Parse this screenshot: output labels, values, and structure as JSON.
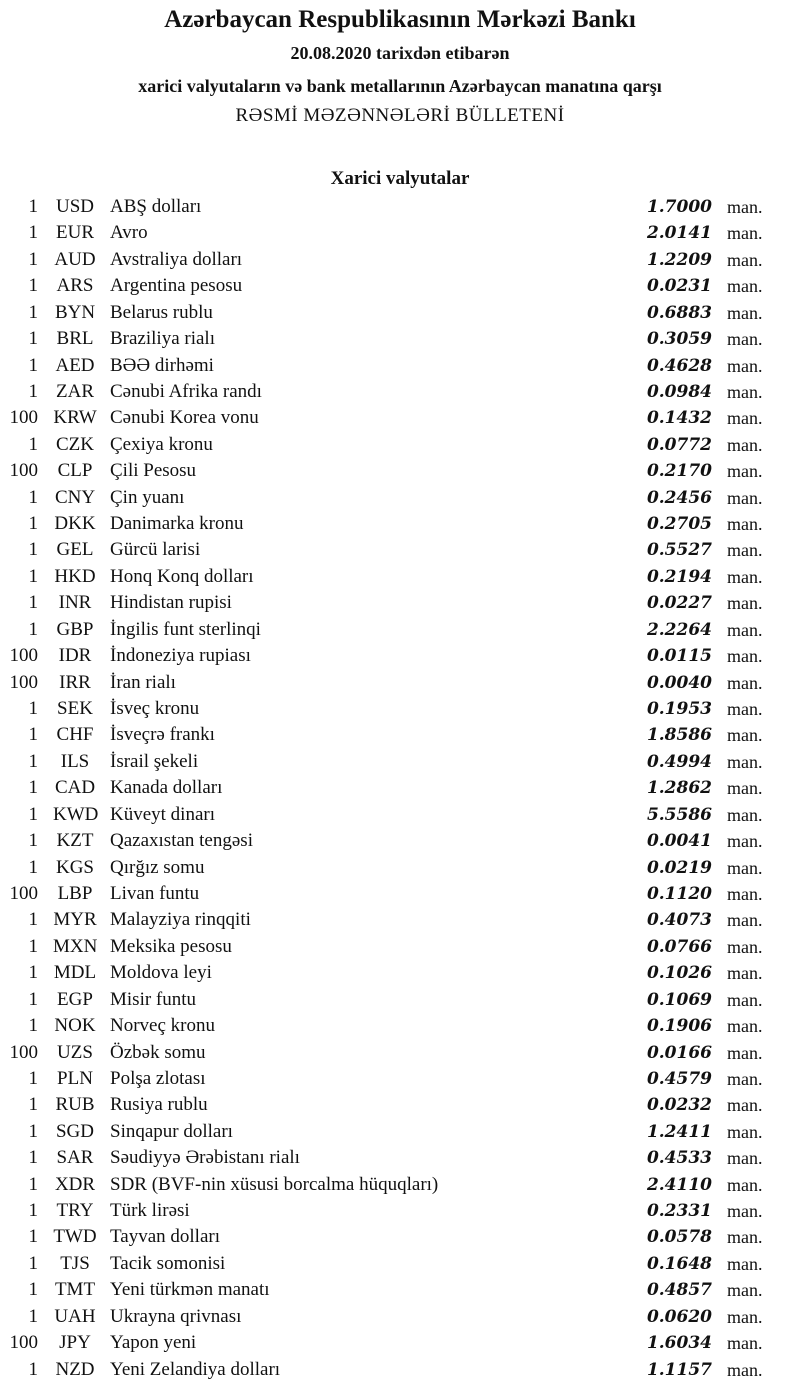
{
  "header": {
    "title": "Azərbaycan Respublikasının Mərkəzi Bankı",
    "date_line": "20.08.2020  tarixdən etibarən",
    "subtitle": "xarici valyutaların və bank metallarının Azərbaycan manatına qarşı",
    "bulletin": "RƏSMİ MƏZƏNNƏLƏRİ BÜLLETENİ"
  },
  "section": {
    "title": "Xarici valyutalar",
    "unit": "man.",
    "rows": [
      {
        "qty": "1",
        "code": "USD",
        "name": "ABŞ dolları",
        "rate": "1.7000"
      },
      {
        "qty": "1",
        "code": "EUR",
        "name": "Avro",
        "rate": "2.0141"
      },
      {
        "qty": "1",
        "code": "AUD",
        "name": "Avstraliya dolları",
        "rate": "1.2209"
      },
      {
        "qty": "1",
        "code": "ARS",
        "name": "Argentina pesosu",
        "rate": "0.0231"
      },
      {
        "qty": "1",
        "code": "BYN",
        "name": "Belarus rublu",
        "rate": "0.6883"
      },
      {
        "qty": "1",
        "code": "BRL",
        "name": "Braziliya rialı",
        "rate": "0.3059"
      },
      {
        "qty": "1",
        "code": "AED",
        "name": "BƏƏ dirhəmi",
        "rate": "0.4628"
      },
      {
        "qty": "1",
        "code": "ZAR",
        "name": "Cənubi Afrika randı",
        "rate": "0.0984"
      },
      {
        "qty": "100",
        "code": "KRW",
        "name": "Cənubi Korea vonu",
        "rate": "0.1432"
      },
      {
        "qty": "1",
        "code": "CZK",
        "name": "Çexiya kronu",
        "rate": "0.0772"
      },
      {
        "qty": "100",
        "code": "CLP",
        "name": "Çili Pesosu",
        "rate": "0.2170"
      },
      {
        "qty": "1",
        "code": "CNY",
        "name": "Çin yuanı",
        "rate": "0.2456"
      },
      {
        "qty": "1",
        "code": "DKK",
        "name": "Danimarka kronu",
        "rate": "0.2705"
      },
      {
        "qty": "1",
        "code": "GEL",
        "name": "Gürcü larisi",
        "rate": "0.5527"
      },
      {
        "qty": "1",
        "code": "HKD",
        "name": "Honq Konq dolları",
        "rate": "0.2194"
      },
      {
        "qty": "1",
        "code": "INR",
        "name": "Hindistan rupisi",
        "rate": "0.0227"
      },
      {
        "qty": "1",
        "code": "GBP",
        "name": "İngilis funt sterlinqi",
        "rate": "2.2264"
      },
      {
        "qty": "100",
        "code": "IDR",
        "name": "İndoneziya rupiası",
        "rate": "0.0115"
      },
      {
        "qty": "100",
        "code": "IRR",
        "name": "İran rialı",
        "rate": "0.0040"
      },
      {
        "qty": "1",
        "code": "SEK",
        "name": "İsveç kronu",
        "rate": "0.1953"
      },
      {
        "qty": "1",
        "code": "CHF",
        "name": "İsveçrə frankı",
        "rate": "1.8586"
      },
      {
        "qty": "1",
        "code": "ILS",
        "name": "İsrail şekeli",
        "rate": "0.4994"
      },
      {
        "qty": "1",
        "code": "CAD",
        "name": "Kanada dolları",
        "rate": "1.2862"
      },
      {
        "qty": "1",
        "code": "KWD",
        "name": "Küveyt dinarı",
        "rate": "5.5586"
      },
      {
        "qty": "1",
        "code": "KZT",
        "name": "Qazaxıstan tengəsi",
        "rate": "0.0041"
      },
      {
        "qty": "1",
        "code": "KGS",
        "name": "Qırğız somu",
        "rate": "0.0219"
      },
      {
        "qty": "100",
        "code": "LBP",
        "name": "Livan funtu",
        "rate": "0.1120"
      },
      {
        "qty": "1",
        "code": "MYR",
        "name": "Malayziya rinqqiti",
        "rate": "0.4073"
      },
      {
        "qty": "1",
        "code": "MXN",
        "name": "Meksika pesosu",
        "rate": "0.0766"
      },
      {
        "qty": "1",
        "code": "MDL",
        "name": "Moldova leyi",
        "rate": "0.1026"
      },
      {
        "qty": "1",
        "code": "EGP",
        "name": "Misir funtu",
        "rate": "0.1069"
      },
      {
        "qty": "1",
        "code": "NOK",
        "name": "Norveç kronu",
        "rate": "0.1906"
      },
      {
        "qty": "100",
        "code": "UZS",
        "name": "Özbək somu",
        "rate": "0.0166"
      },
      {
        "qty": "1",
        "code": "PLN",
        "name": "Polşa zlotası",
        "rate": "0.4579"
      },
      {
        "qty": "1",
        "code": "RUB",
        "name": "Rusiya rublu",
        "rate": "0.0232"
      },
      {
        "qty": "1",
        "code": "SGD",
        "name": "Sinqapur dolları",
        "rate": "1.2411"
      },
      {
        "qty": "1",
        "code": "SAR",
        "name": "Səudiyyə Ərəbistanı rialı",
        "rate": "0.4533"
      },
      {
        "qty": "1",
        "code": "XDR",
        "name": "SDR (BVF-nin xüsusi borcalma hüquqları)",
        "rate": "2.4110"
      },
      {
        "qty": "1",
        "code": "TRY",
        "name": "Türk lirəsi",
        "rate": "0.2331"
      },
      {
        "qty": "1",
        "code": "TWD",
        "name": "Tayvan dolları",
        "rate": "0.0578"
      },
      {
        "qty": "1",
        "code": "TJS",
        "name": "Tacik somonisi",
        "rate": "0.1648"
      },
      {
        "qty": "1",
        "code": "TMT",
        "name": "Yeni türkmən manatı",
        "rate": "0.4857"
      },
      {
        "qty": "1",
        "code": "UAH",
        "name": "Ukrayna qrivnası",
        "rate": "0.0620"
      },
      {
        "qty": "100",
        "code": "JPY",
        "name": "Yapon yeni",
        "rate": "1.6034"
      },
      {
        "qty": "1",
        "code": "NZD",
        "name": "Yeni Zelandiya dolları",
        "rate": "1.1157"
      }
    ]
  }
}
